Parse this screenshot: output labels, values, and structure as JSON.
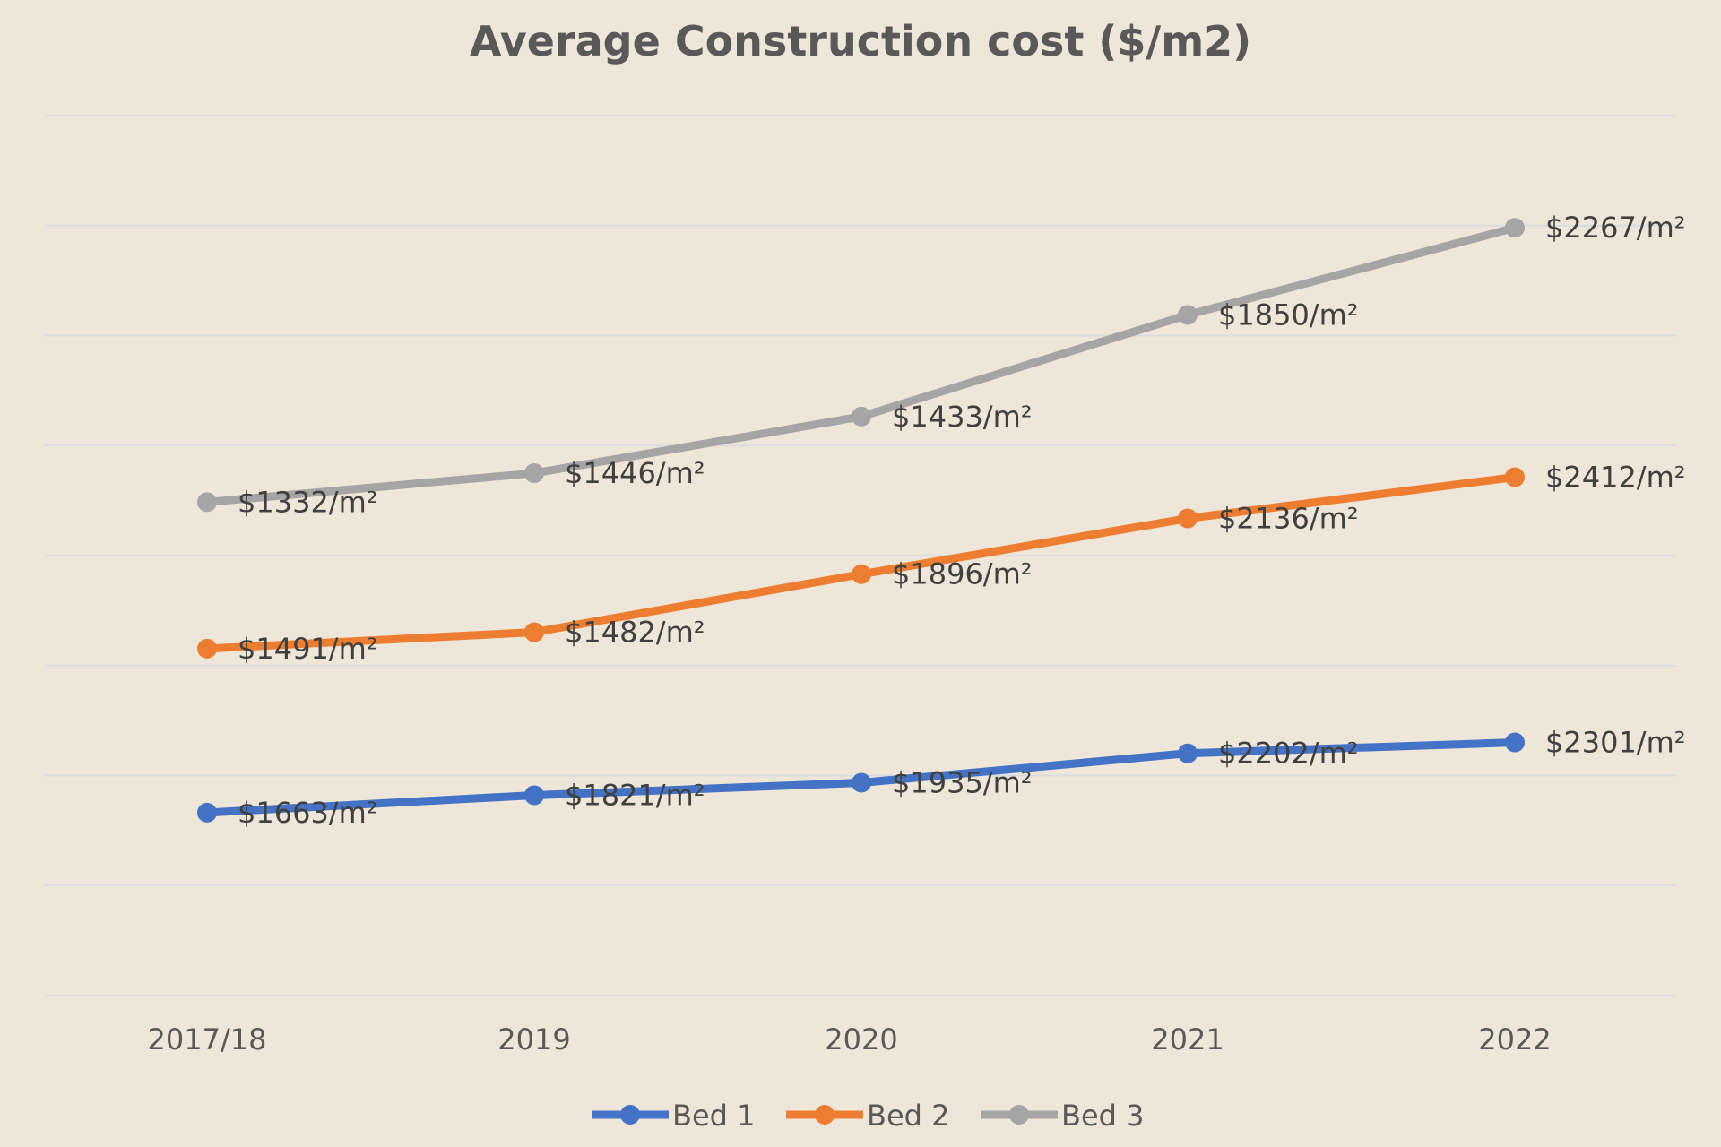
{
  "chart_data": {
    "type": "line",
    "stacked": true,
    "title": "Average Construction cost ($/m2)",
    "xlabel": "",
    "ylabel": "",
    "categories": [
      "2017/18",
      "2019",
      "2020",
      "2021",
      "2022"
    ],
    "ylim": [
      0,
      8000
    ],
    "y_grid_step": 1000,
    "grid": true,
    "legend_position": "bottom",
    "series": [
      {
        "name": "Bed 1",
        "color": "#4472C4",
        "values": [
          1663,
          1821,
          1935,
          2202,
          2301
        ],
        "labels": [
          "$1663/m²",
          "$1821/m²",
          "$1935/m²",
          "$2202/m²",
          "$2301/m²"
        ]
      },
      {
        "name": "Bed 2",
        "color": "#ED7D31",
        "values": [
          1491,
          1482,
          1896,
          2136,
          2412
        ],
        "labels": [
          "$1491/m²",
          "$1482/m²",
          "$1896/m²",
          "$2136/m²",
          "$2412/m²"
        ]
      },
      {
        "name": "Bed 3",
        "color": "#A5A5A5",
        "values": [
          1332,
          1446,
          1433,
          1850,
          2267
        ],
        "labels": [
          "$1332/m²",
          "$1446/m²",
          "$1433/m²",
          "$1850/m²",
          "$2267/m²"
        ]
      }
    ]
  }
}
